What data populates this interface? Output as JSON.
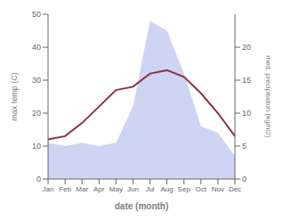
{
  "chart_data": {
    "type": "line",
    "categories": [
      "Jan",
      "Feb",
      "Mar",
      "Apr",
      "May",
      "Jun",
      "Jul",
      "Aug",
      "Sep",
      "Oct",
      "Nov",
      "Dec"
    ],
    "xlabel": "date (month)",
    "ylabel": "max temp (C)",
    "y2label": "med. precipitation (kg/m2)",
    "ylim": [
      0,
      50
    ],
    "yticks": [
      0,
      10,
      20,
      30,
      40,
      50
    ],
    "y2lim": [
      0,
      25
    ],
    "y2ticks": [
      0,
      5,
      10,
      15,
      20
    ],
    "grid": false,
    "series": [
      {
        "type": "area",
        "axis": "y2",
        "color": "#c5cef0",
        "values": [
          5.5,
          5.0,
          5.5,
          5.0,
          5.5,
          11,
          24,
          22.5,
          16,
          8,
          7,
          3.5
        ]
      },
      {
        "type": "line",
        "axis": "y",
        "color": "#883344",
        "values": [
          12,
          13,
          17,
          22,
          27,
          28,
          32,
          33,
          31,
          26,
          20,
          13
        ]
      }
    ]
  }
}
